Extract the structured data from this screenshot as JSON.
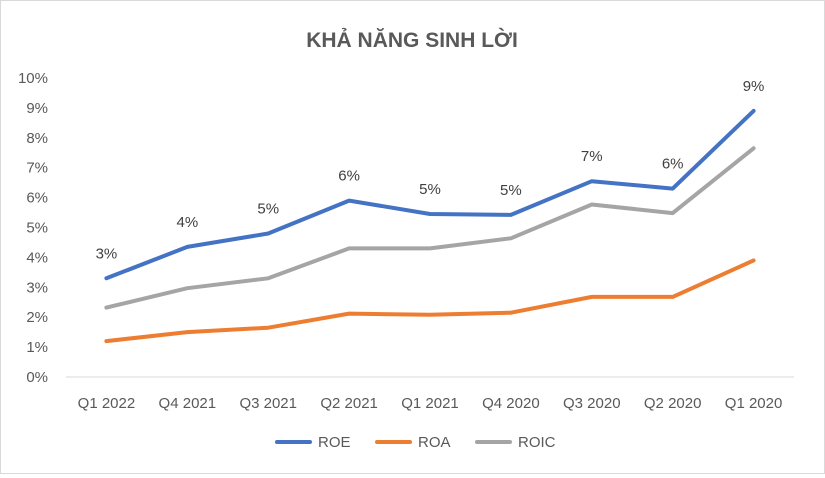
{
  "chart_data": {
    "type": "line",
    "title": "KHẢ NĂNG SINH LỜI",
    "categories": [
      "Q1 2022",
      "Q4 2021",
      "Q3 2021",
      "Q2 2021",
      "Q1 2021",
      "Q4 2020",
      "Q3 2020",
      "Q2 2020",
      "Q1 2020"
    ],
    "ylim": [
      0,
      10
    ],
    "yticks": [
      0,
      1,
      2,
      3,
      4,
      5,
      6,
      7,
      8,
      9,
      10
    ],
    "ytick_labels": [
      "0%",
      "1%",
      "2%",
      "3%",
      "4%",
      "5%",
      "6%",
      "7%",
      "8%",
      "9%",
      "10%"
    ],
    "grid": false,
    "legend_position": "bottom",
    "xlabel": "",
    "ylabel": "",
    "series": [
      {
        "name": "ROE",
        "color": "#4472C4",
        "values": [
          3.3,
          4.35,
          4.8,
          5.9,
          5.45,
          5.42,
          6.55,
          6.3,
          8.9
        ],
        "data_labels": [
          "3%",
          "4%",
          "5%",
          "6%",
          "5%",
          "5%",
          "7%",
          "6%",
          "9%"
        ]
      },
      {
        "name": "ROA",
        "color": "#ED7D31",
        "values": [
          1.2,
          1.5,
          1.65,
          2.12,
          2.08,
          2.15,
          2.68,
          2.68,
          3.9
        ]
      },
      {
        "name": "ROIC",
        "color": "#A5A5A5",
        "values": [
          2.32,
          2.97,
          3.3,
          4.3,
          4.3,
          4.64,
          5.77,
          5.48,
          7.65
        ]
      }
    ]
  }
}
